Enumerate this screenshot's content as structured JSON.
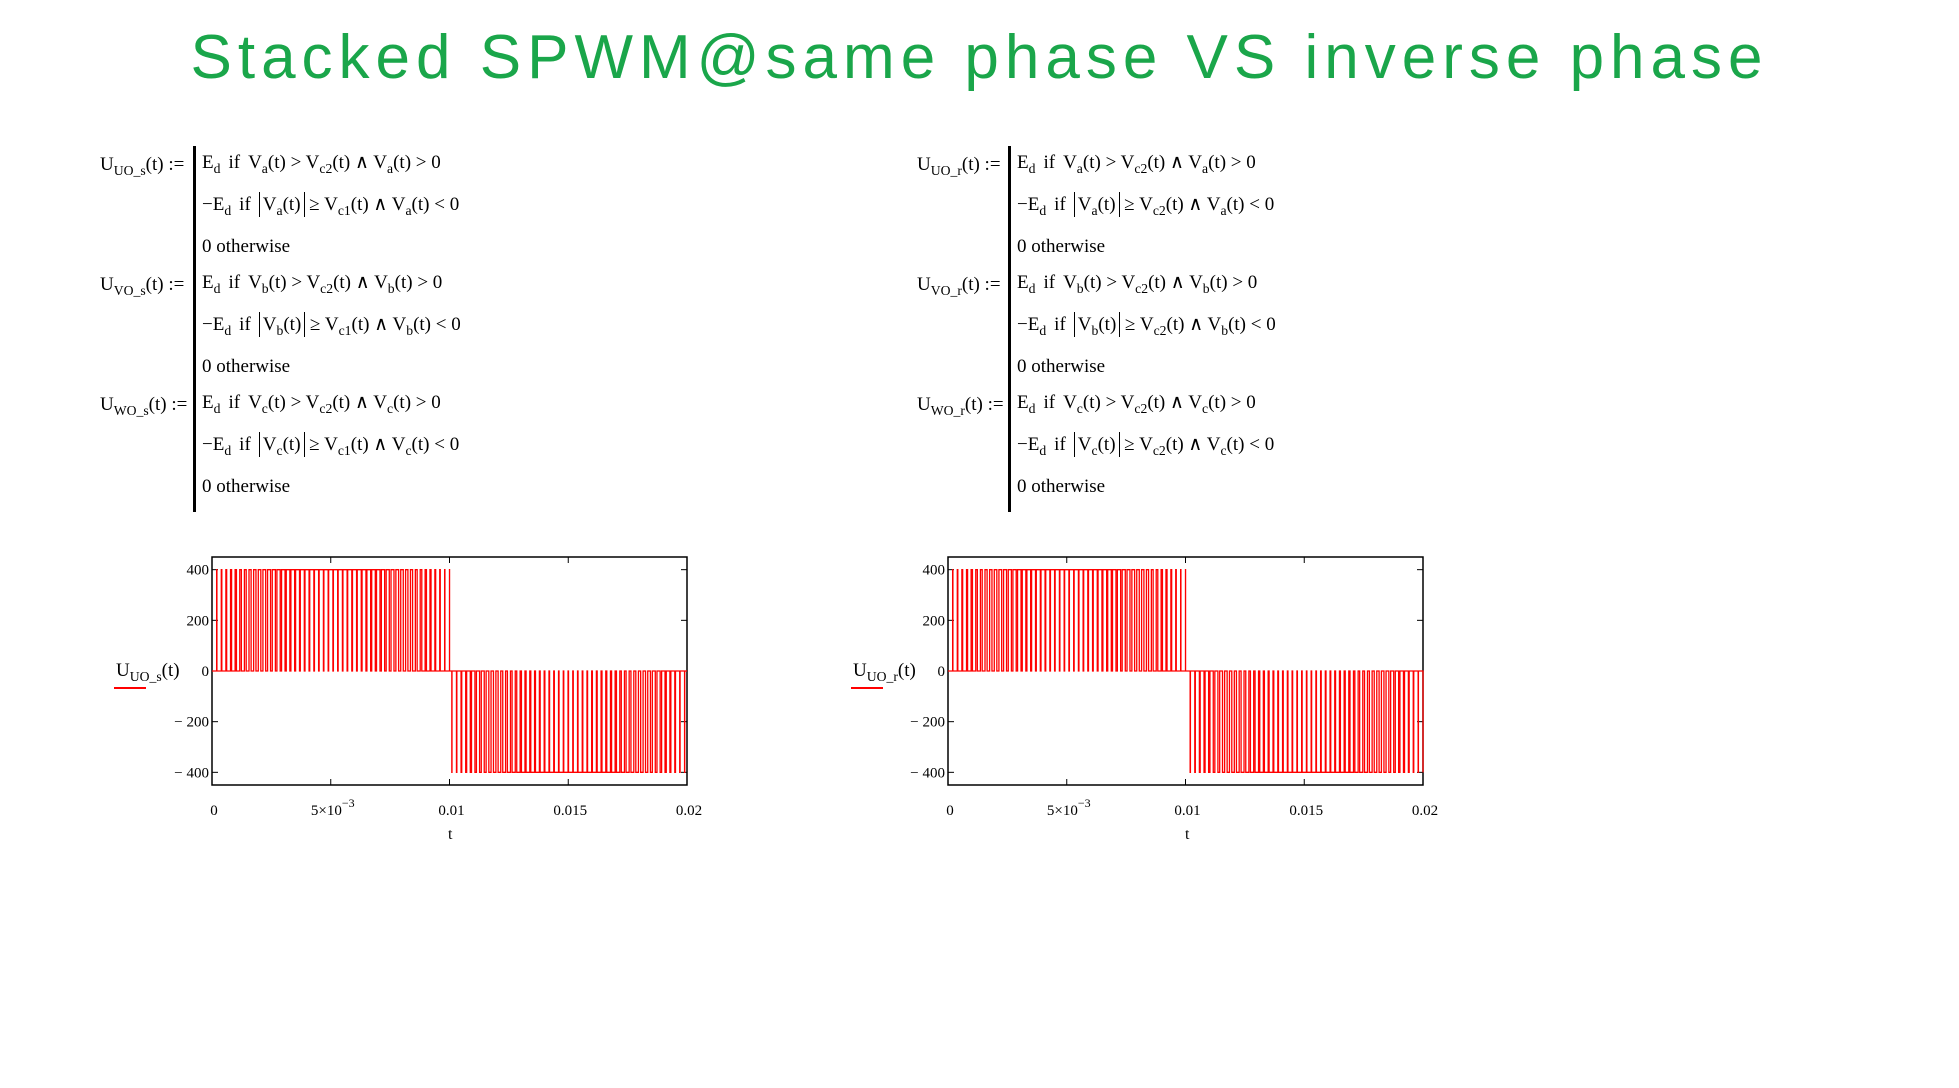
{
  "title": "Stacked SPWM@same phase VS inverse phase",
  "equations": {
    "left": [
      {
        "lhs_base": "U",
        "lhs_sub": "UO_s",
        "lhs_rest": "(t) :=",
        "rows": [
          {
            "pre": "E",
            "pre_sub": "d",
            "cond": "if",
            "var": "V",
            "var_sub": "a",
            "rel": "> V",
            "rel_sub": "c2",
            "tail": "(t) ∧ V",
            "tail_sub": "a",
            "end": "(t) > 0",
            "abs": false
          },
          {
            "pre": "−E",
            "pre_sub": "d",
            "cond": "if",
            "var": "V",
            "var_sub": "a",
            "rel": "≥ V",
            "rel_sub": "c1",
            "tail": "(t) ∧ V",
            "tail_sub": "a",
            "end": "(t) < 0",
            "abs": true
          },
          {
            "text": "0  otherwise"
          }
        ]
      },
      {
        "lhs_base": "U",
        "lhs_sub": "VO_s",
        "lhs_rest": "(t) :=",
        "rows": [
          {
            "pre": "E",
            "pre_sub": "d",
            "cond": "if",
            "var": "V",
            "var_sub": "b",
            "rel": "> V",
            "rel_sub": "c2",
            "tail": "(t) ∧ V",
            "tail_sub": "b",
            "end": "(t) > 0",
            "abs": false
          },
          {
            "pre": "−E",
            "pre_sub": "d",
            "cond": "if",
            "var": "V",
            "var_sub": "b",
            "rel": "≥ V",
            "rel_sub": "c1",
            "tail": "(t) ∧ V",
            "tail_sub": "b",
            "end": "(t) < 0",
            "abs": true
          },
          {
            "text": "0  otherwise"
          }
        ]
      },
      {
        "lhs_base": "U",
        "lhs_sub": "WO_s",
        "lhs_rest": "(t) :=",
        "rows": [
          {
            "pre": "E",
            "pre_sub": "d",
            "cond": "if",
            "var": "V",
            "var_sub": "c",
            "rel": "> V",
            "rel_sub": "c2",
            "tail": "(t) ∧ V",
            "tail_sub": "c",
            "end": "(t) > 0",
            "abs": false
          },
          {
            "pre": "−E",
            "pre_sub": "d",
            "cond": "if",
            "var": "V",
            "var_sub": "c",
            "rel": "≥ V",
            "rel_sub": "c1",
            "tail": "(t) ∧ V",
            "tail_sub": "c",
            "end": "(t) < 0",
            "abs": true
          },
          {
            "text": "0  otherwise"
          }
        ]
      }
    ],
    "right": [
      {
        "lhs_base": "U",
        "lhs_sub": "UO_r",
        "lhs_rest": "(t) :=",
        "rows": [
          {
            "pre": "E",
            "pre_sub": "d",
            "cond": "if",
            "var": "V",
            "var_sub": "a",
            "rel": "> V",
            "rel_sub": "c2",
            "tail": "(t) ∧ V",
            "tail_sub": "a",
            "end": "(t) > 0",
            "abs": false
          },
          {
            "pre": "−E",
            "pre_sub": "d",
            "cond": "if",
            "var": "V",
            "var_sub": "a",
            "rel": "≥ V",
            "rel_sub": "c2",
            "tail": "(t) ∧ V",
            "tail_sub": "a",
            "end": "(t) < 0",
            "abs": true
          },
          {
            "text": "0  otherwise"
          }
        ]
      },
      {
        "lhs_base": "U",
        "lhs_sub": "VO_r",
        "lhs_rest": "(t) :=",
        "rows": [
          {
            "pre": "E",
            "pre_sub": "d",
            "cond": "if",
            "var": "V",
            "var_sub": "b",
            "rel": "> V",
            "rel_sub": "c2",
            "tail": "(t) ∧ V",
            "tail_sub": "b",
            "end": "(t) > 0",
            "abs": false
          },
          {
            "pre": "−E",
            "pre_sub": "d",
            "cond": "if",
            "var": "V",
            "var_sub": "b",
            "rel": "≥ V",
            "rel_sub": "c2",
            "tail": "(t) ∧ V",
            "tail_sub": "b",
            "end": "(t) < 0",
            "abs": true
          },
          {
            "text": "0  otherwise"
          }
        ]
      },
      {
        "lhs_base": "U",
        "lhs_sub": "WO_r",
        "lhs_rest": "(t) :=",
        "rows": [
          {
            "pre": "E",
            "pre_sub": "d",
            "cond": "if",
            "var": "V",
            "var_sub": "c",
            "rel": "> V",
            "rel_sub": "c2",
            "tail": "(t) ∧ V",
            "tail_sub": "c",
            "end": "(t) > 0",
            "abs": false
          },
          {
            "pre": "−E",
            "pre_sub": "d",
            "cond": "if",
            "var": "V",
            "var_sub": "c",
            "rel": "≥ V",
            "rel_sub": "c2",
            "tail": "(t) ∧ V",
            "tail_sub": "c",
            "end": "(t) < 0",
            "abs": true
          },
          {
            "text": "0  otherwise"
          }
        ]
      }
    ]
  },
  "chart_data": [
    {
      "type": "line",
      "name": "same-phase",
      "series": [
        {
          "name": "U_UO_s(t)",
          "color": "#ff0000",
          "levels": [
            -400,
            0,
            400
          ],
          "mode": "same"
        }
      ],
      "ylabel": "U_UO_s(t)",
      "ylabel_base": "U",
      "ylabel_sub": "UO_s",
      "ylabel_rest": "(t)",
      "xlabel": "t",
      "xlim": [
        0,
        0.02
      ],
      "ylim": [
        -450,
        450
      ],
      "xticks": [
        0,
        0.005,
        0.01,
        0.015,
        0.02
      ],
      "xtick_labels": [
        "0",
        "5×10",
        "0.01",
        "0.015",
        "0.02"
      ],
      "xtick_exp": "−3",
      "yticks": [
        400,
        200,
        0,
        -200,
        -400
      ],
      "ytick_labels": [
        "400",
        "200",
        "0",
        "− 200",
        "− 400"
      ],
      "carrier_periods": 100,
      "fundamental_hz": 50,
      "amplitude": 400
    },
    {
      "type": "line",
      "name": "inverse-phase",
      "series": [
        {
          "name": "U_UO_r(t)",
          "color": "#ff0000",
          "levels": [
            -400,
            0,
            400
          ],
          "mode": "inverse"
        }
      ],
      "ylabel": "U_UO_r(t)",
      "ylabel_base": "U",
      "ylabel_sub": "UO_r",
      "ylabel_rest": "(t)",
      "xlabel": "t",
      "xlim": [
        0,
        0.02
      ],
      "ylim": [
        -450,
        450
      ],
      "xticks": [
        0,
        0.005,
        0.01,
        0.015,
        0.02
      ],
      "xtick_labels": [
        "0",
        "5×10",
        "0.01",
        "0.015",
        "0.02"
      ],
      "xtick_exp": "−3",
      "yticks": [
        400,
        200,
        0,
        -200,
        -400
      ],
      "ytick_labels": [
        "400",
        "200",
        "0",
        "− 200",
        "− 400"
      ],
      "carrier_periods": 100,
      "fundamental_hz": 50,
      "amplitude": 400
    }
  ]
}
